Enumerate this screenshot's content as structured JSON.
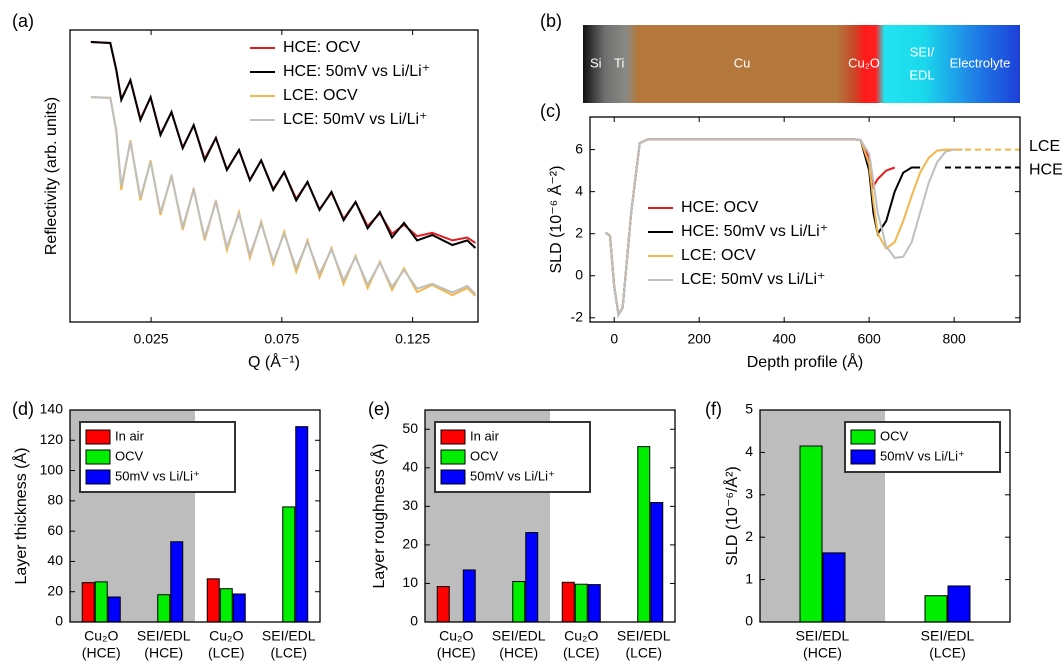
{
  "chart_data": [
    {
      "type": "line",
      "panel": "(a)",
      "ylog": true,
      "legend": "upper right",
      "xlabel": "Q (Å⁻¹)",
      "ylabel": "Reflectivity (arb. units)",
      "xlim": [
        -0.006,
        0.15
      ],
      "ylim": [
        1e-07,
        2
      ],
      "xticks": [
        0.025,
        0.075,
        0.125
      ],
      "x": [
        0.002,
        0.0094,
        0.0117,
        0.0136,
        0.0171,
        0.0209,
        0.0248,
        0.0286,
        0.0328,
        0.0371,
        0.0413,
        0.0455,
        0.0498,
        0.054,
        0.0586,
        0.0628,
        0.0671,
        0.0717,
        0.0759,
        0.0805,
        0.0848,
        0.0894,
        0.094,
        0.0986,
        0.1032,
        0.1078,
        0.1125,
        0.1171,
        0.1217,
        0.1267,
        0.1325,
        0.1402,
        0.1459,
        0.149
      ],
      "series": [
        {
          "name": "HCE: OCV",
          "color": "#e41a1c",
          "values": [
            1,
            0.944,
            0.2,
            0.038,
            0.11,
            0.012,
            0.041,
            0.005,
            0.0175,
            0.0023,
            0.0083,
            0.0012,
            0.004,
            0.00065,
            0.002,
            0.00036,
            0.0011,
            0.00021,
            0.00055,
            0.00012,
            0.00031,
            6.6e-05,
            0.00017,
            3.8e-05,
            0.0001,
            2.5e-05,
            5.2e-05,
            1.6e-05,
            2.7e-05,
            1.4e-05,
            1.7e-05,
            1.1e-05,
            1.3e-05,
            9.5e-06
          ]
        },
        {
          "name": "HCE: 50mV vs Li/Li⁺",
          "color": "#000000",
          "values": [
            1,
            0.944,
            0.2,
            0.0355,
            0.112,
            0.0112,
            0.042,
            0.0047,
            0.0178,
            0.0022,
            0.0084,
            0.0011,
            0.004,
            0.00063,
            0.002,
            0.00035,
            0.0011,
            0.0002,
            0.00056,
            0.00011,
            0.00032,
            6.3e-05,
            0.00018,
            3.5e-05,
            0.0001,
            2.2e-05,
            5.6e-05,
            1.3e-05,
            3e-05,
            1.1e-05,
            1.5e-05,
            8.4e-06,
            1.1e-05,
            7.1e-06
          ]
        },
        {
          "name": "LCE: OCV",
          "color": "#f2b64c",
          "values": [
            0.042,
            0.04,
            0.0063,
            0.0002,
            0.0035,
            0.00011,
            0.0011,
            4.7e-05,
            0.00047,
            2e-05,
            0.00022,
            1.1e-05,
            0.00011,
            6.3e-06,
            5.6e-05,
            4e-06,
            3.2e-05,
            2.8e-06,
            1.8e-05,
            1.8e-06,
            1.1e-05,
            1.3e-06,
            7.1e-06,
            8.9e-07,
            4.5e-06,
            7.1e-07,
            3.2e-06,
            6.3e-07,
            2.2e-06,
            5.6e-07,
            8.4e-07,
            4.7e-07,
            7.1e-07,
            4.5e-07
          ]
        },
        {
          "name": "LCE: 50mV vs Li/Li⁺",
          "color": "#bfbfbf",
          "values": [
            0.042,
            0.04,
            0.0058,
            0.00025,
            0.0032,
            0.00013,
            0.001,
            5.5e-05,
            0.00043,
            2.4e-05,
            0.0002,
            1.3e-05,
            0.0001,
            7.5e-06,
            5e-05,
            4.8e-06,
            2.9e-05,
            3.3e-06,
            1.6e-05,
            2.2e-06,
            1e-05,
            1.6e-06,
            6.5e-06,
            1.1e-06,
            4.2e-06,
            8.5e-07,
            3e-06,
            7.5e-07,
            2e-06,
            6.8e-07,
            9e-07,
            5.5e-07,
            8e-07,
            5e-07
          ]
        }
      ]
    },
    {
      "type": "line",
      "panel": "(c)",
      "legend": "center",
      "xlabel": "Depth profile (Å)",
      "ylabel": "SLD (10⁻⁶ Å⁻²)",
      "xlim": [
        -57,
        955
      ],
      "ylim": [
        -2.2,
        7.55
      ],
      "xticks": [
        0,
        200,
        400,
        600,
        800
      ],
      "yticks": [
        -2,
        0,
        2,
        4,
        6
      ],
      "x": [
        -20,
        -10,
        0,
        10,
        20,
        40,
        60,
        80,
        200,
        400,
        560,
        580,
        600,
        610,
        620,
        640,
        660,
        680,
        700,
        720,
        740,
        760,
        780,
        800,
        820
      ],
      "series": [
        {
          "name": "HCE: OCV",
          "color": "#e41a1c",
          "values": [
            2.05,
            1.9,
            -0.5,
            -1.85,
            -1.5,
            3.0,
            6.3,
            6.5,
            6.5,
            6.5,
            6.5,
            6.45,
            5.6,
            4.25,
            4.6,
            5.0,
            5.15,
            null,
            null,
            null,
            null,
            null,
            null,
            null,
            null
          ]
        },
        {
          "name": "HCE: 50mV vs Li/Li⁺",
          "color": "#000000",
          "values": [
            2.05,
            1.9,
            -0.5,
            -1.85,
            -1.5,
            3.0,
            6.3,
            6.5,
            6.5,
            6.5,
            6.5,
            6.45,
            5.0,
            3.0,
            2.0,
            2.6,
            4.0,
            4.9,
            5.15,
            5.15,
            null,
            null,
            null,
            null,
            null
          ]
        },
        {
          "name": "LCE: OCV",
          "color": "#f2b64c",
          "values": [
            2.05,
            1.9,
            -0.5,
            -1.85,
            -1.5,
            3.0,
            6.3,
            6.5,
            6.5,
            6.5,
            6.5,
            6.45,
            5.3,
            3.5,
            2.0,
            1.3,
            1.6,
            2.6,
            3.8,
            4.9,
            5.6,
            5.95,
            6.0,
            6.0,
            null
          ]
        },
        {
          "name": "LCE: 50mV vs Li/Li⁺",
          "color": "#bfbfbf",
          "values": [
            2.05,
            1.9,
            -0.5,
            -1.85,
            -1.5,
            3.0,
            6.3,
            6.5,
            6.5,
            6.5,
            6.5,
            6.45,
            5.8,
            4.5,
            3.0,
            1.4,
            0.85,
            0.9,
            1.6,
            3.0,
            4.4,
            5.4,
            5.9,
            6.0,
            6.0
          ]
        }
      ],
      "annotations": [
        {
          "text": "LCE",
          "value": 6.0,
          "color": "#f2b64c"
        },
        {
          "text": "HCE",
          "value": 5.15,
          "color": "#000000"
        }
      ]
    },
    {
      "type": "bar",
      "panel": "(d)",
      "legend": "upper left",
      "ylabel": "Layer thickness (Å)",
      "ylim": [
        0,
        140
      ],
      "yticks": [
        0,
        20,
        40,
        60,
        80,
        100,
        120,
        140
      ],
      "categories": [
        [
          "Cu₂O",
          "(HCE)"
        ],
        [
          "SEI/EDL",
          "(HCE)"
        ],
        [
          "Cu₂O",
          "(LCE)"
        ],
        [
          "SEI/EDL",
          "(LCE)"
        ]
      ],
      "series": [
        {
          "name": "In air",
          "color": "#ff0000",
          "values": [
            26,
            null,
            28.5,
            null
          ]
        },
        {
          "name": "OCV",
          "color": "#00ee00",
          "values": [
            26.5,
            18,
            22,
            76
          ]
        },
        {
          "name": "50mV vs Li/Li⁺",
          "color": "#0000ff",
          "values": [
            16.5,
            53,
            18.5,
            129
          ]
        }
      ]
    },
    {
      "type": "bar",
      "panel": "(e)",
      "legend": "upper left",
      "ylabel": "Layer roughness (Å)",
      "ylim": [
        0,
        55
      ],
      "yticks": [
        0,
        10,
        20,
        30,
        40,
        50
      ],
      "categories": [
        [
          "Cu₂O",
          "(HCE)"
        ],
        [
          "SEI/EDL",
          "(HCE)"
        ],
        [
          "Cu₂O",
          "(LCE)"
        ],
        [
          "SEI/EDL",
          "(LCE)"
        ]
      ],
      "series": [
        {
          "name": "In air",
          "color": "#ff0000",
          "values": [
            9.2,
            null,
            10.3,
            null
          ]
        },
        {
          "name": "OCV",
          "color": "#00ee00",
          "values": [
            null,
            10.5,
            9.8,
            45.5
          ]
        },
        {
          "name": "50mV vs Li/Li⁺",
          "color": "#0000ff",
          "values": [
            13.5,
            23.2,
            9.7,
            31
          ]
        }
      ]
    },
    {
      "type": "bar",
      "panel": "(f)",
      "legend": "upper right",
      "ylabel": "SLD (10⁻⁶/Å²)",
      "ylim": [
        0,
        5
      ],
      "yticks": [
        0,
        1,
        2,
        3,
        4,
        5
      ],
      "categories": [
        [
          "SEI/EDL",
          "(HCE)"
        ],
        [
          "SEI/EDL",
          "(LCE)"
        ]
      ],
      "series": [
        {
          "name": "OCV",
          "color": "#00ee00",
          "values": [
            4.15,
            0.62
          ]
        },
        {
          "name": "50mV vs Li/Li⁺",
          "color": "#0000ff",
          "values": [
            1.63,
            0.85
          ]
        }
      ]
    }
  ],
  "layer_stack": {
    "panel": "(b)",
    "layers": [
      "Si",
      "Ti",
      "Cu",
      "Cu₂O",
      [
        "SEI/",
        "EDL"
      ],
      "Electrolyte"
    ]
  }
}
